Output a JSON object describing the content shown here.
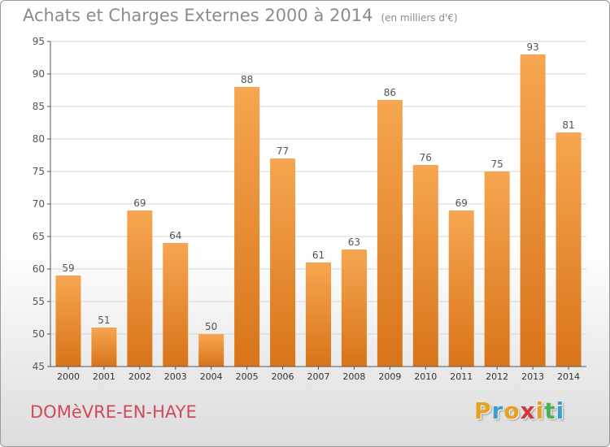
{
  "header": {
    "title": "Achats et Charges Externes 2000 à 2014",
    "unit": "(en milliers d'€)"
  },
  "footer": {
    "town": "DOMèVRE-EN-HAYE",
    "logo_letters": [
      "P",
      "r",
      "o",
      "x",
      "i",
      "t",
      "i"
    ],
    "logo_colors": [
      "#e8a020",
      "#3aa0d0",
      "#e8a020",
      "#d03a3a",
      "#e8a020",
      "#50b050",
      "#3aa0d0"
    ]
  },
  "colors": {
    "bar_top": "#f6a650",
    "bar_bottom": "#d8741a",
    "grid": "#d6d6d6",
    "axis": "#555555",
    "label": "#555555"
  },
  "chart_data": {
    "type": "bar",
    "categories": [
      "2000",
      "2001",
      "2002",
      "2003",
      "2004",
      "2005",
      "2006",
      "2007",
      "2008",
      "2009",
      "2010",
      "2011",
      "2012",
      "2013",
      "2014"
    ],
    "values": [
      59,
      51,
      69,
      64,
      50,
      88,
      77,
      61,
      63,
      86,
      76,
      69,
      75,
      93,
      81
    ],
    "ylim": [
      45,
      95
    ],
    "yticks": [
      45,
      50,
      55,
      60,
      65,
      70,
      75,
      80,
      85,
      90,
      95
    ],
    "grid": true,
    "title": "Achats et Charges Externes 2000 à 2014",
    "xlabel": "",
    "ylabel": ""
  }
}
